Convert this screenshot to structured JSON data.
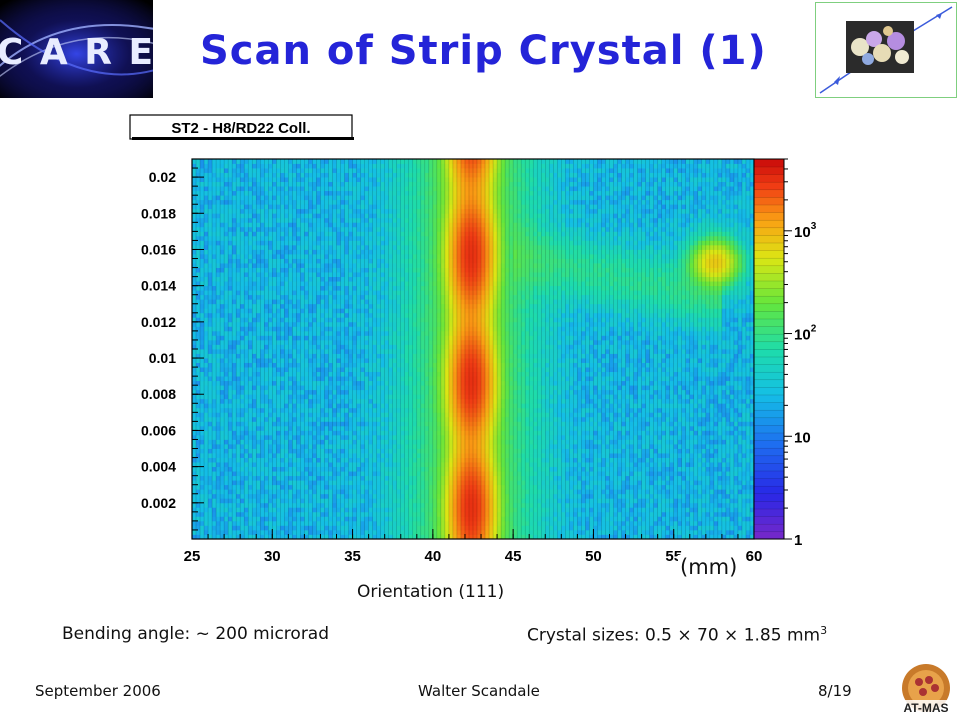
{
  "slide": {
    "title": "Scan of Strip Crystal (1)",
    "care_logo_text": "C A R E",
    "orientation": "Orientation (111)",
    "unit": "(mm)",
    "bending_angle": "Bending angle: ~ 200 microrad",
    "crystal_sizes": "Crystal sizes: 0.5 × 70 × 1.85 mm",
    "crystal_sizes_sup": "3",
    "footer_left": "September 2006",
    "footer_center": "Walter Scandale",
    "footer_right": "8/19",
    "atmas_text": "AT-MAS"
  },
  "colors": {
    "title": "#2424d8",
    "background": "#ffffff"
  },
  "chart_data": {
    "type": "heatmap",
    "title": "ST2 - H8/RD22 Coll.",
    "xlim": [
      25,
      60
    ],
    "ylim": [
      0,
      0.021
    ],
    "x_ticks": [
      "25",
      "30",
      "35",
      "40",
      "45",
      "50",
      "55",
      "60"
    ],
    "y_ticks": [
      "0.002",
      "0.004",
      "0.006",
      "0.008",
      "0.01",
      "0.012",
      "0.014",
      "0.016",
      "0.018",
      "0.02"
    ],
    "colorbar": {
      "scale": "log",
      "range": [
        1,
        5000
      ],
      "ticks": [
        {
          "value": 1,
          "base": "1",
          "exp": ""
        },
        {
          "value": 10,
          "base": "10",
          "exp": ""
        },
        {
          "value": 100,
          "base": "10",
          "exp": "2"
        },
        {
          "value": 1000,
          "base": "10",
          "exp": "3"
        }
      ]
    },
    "features": [
      {
        "name": "channeling band",
        "x_center": 42.4,
        "x_width": 1.6,
        "peak_counts": 3000
      },
      {
        "name": "band shoulder",
        "x_center": 42.4,
        "x_width": 3.6,
        "peak_counts": 150
      },
      {
        "name": "hot spot",
        "x_center": 57.6,
        "y_center": 0.0153,
        "peak_counts": 700
      },
      {
        "name": "diagonal streak",
        "x_from": 46,
        "y_from": 0.0155,
        "x_to": 57,
        "y_to": 0.0135,
        "peak_counts": 60
      },
      {
        "name": "background",
        "counts": 25
      }
    ]
  }
}
